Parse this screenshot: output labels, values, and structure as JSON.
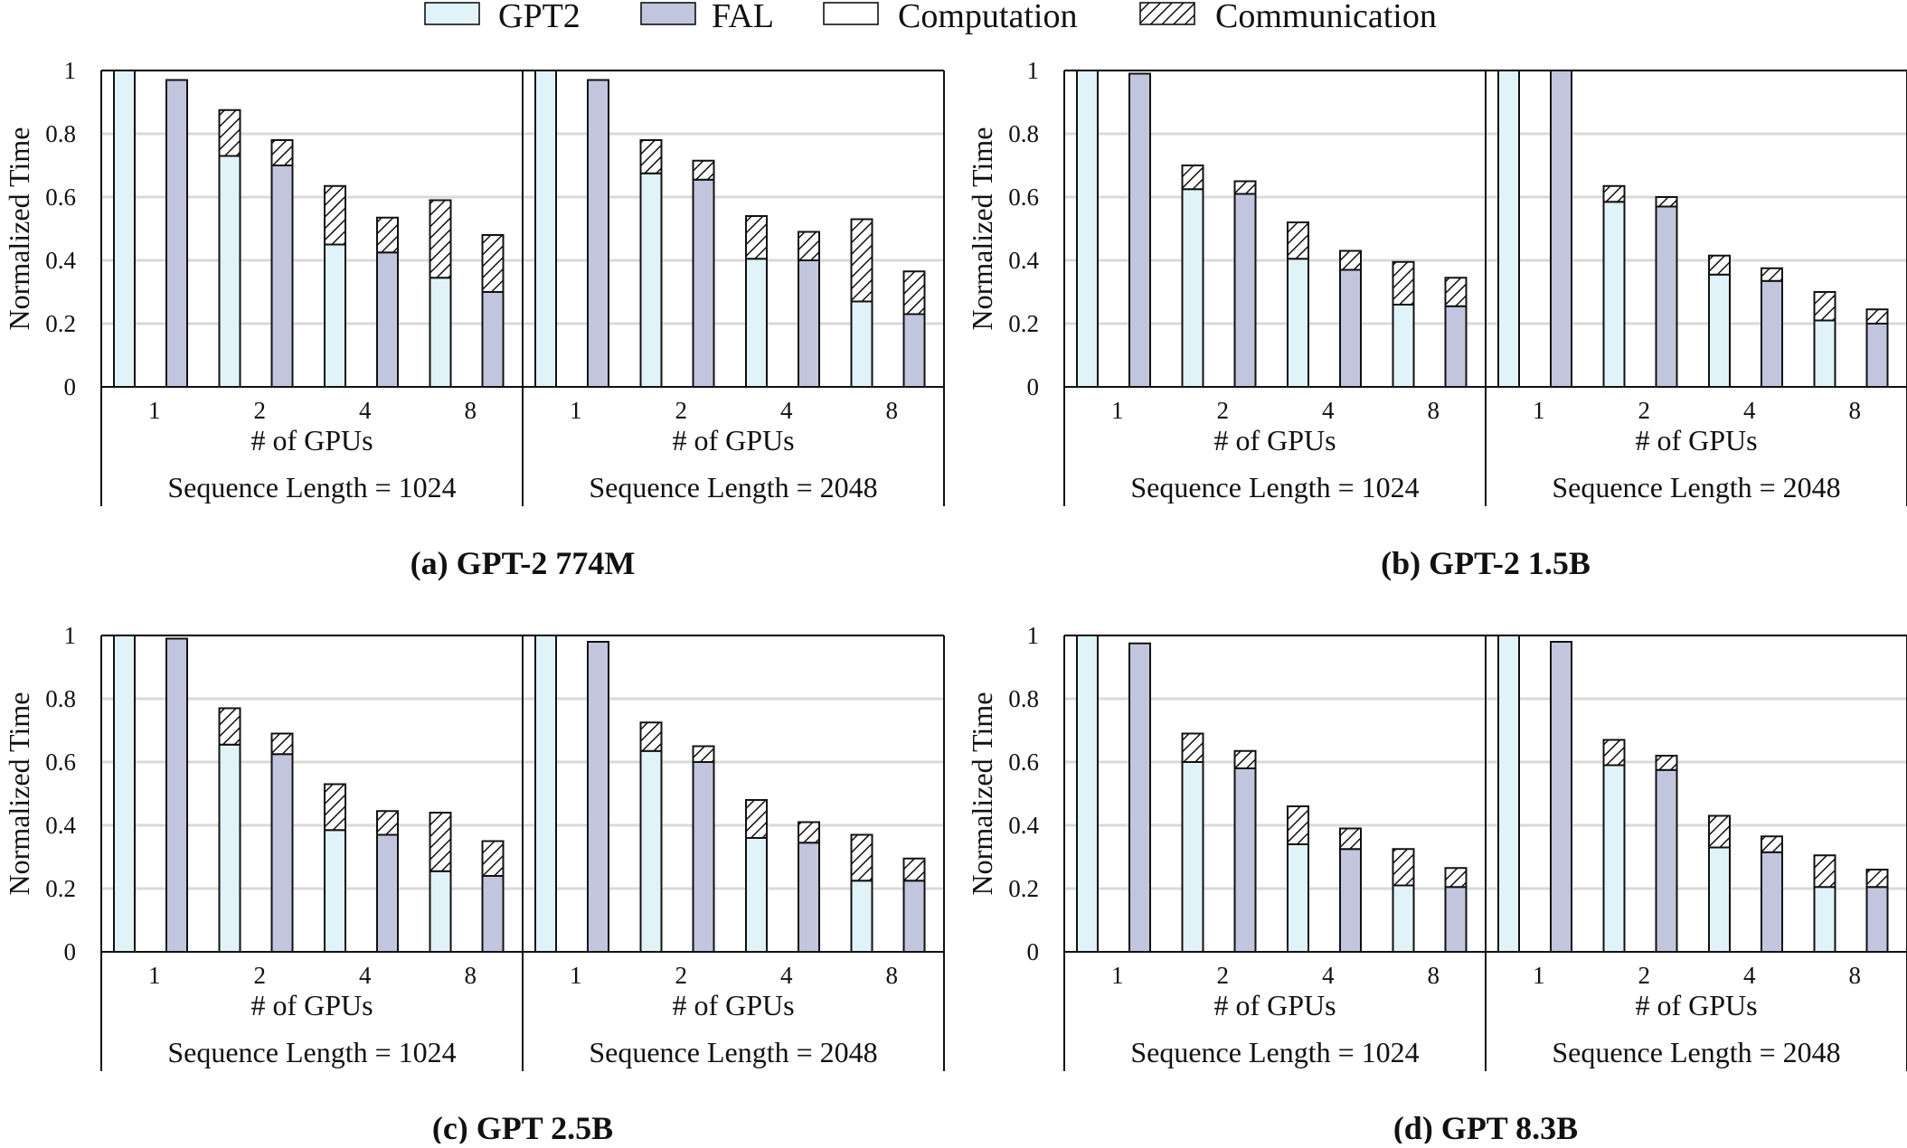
{
  "colors": {
    "gpt2_fill": "#dff3f9",
    "fal_fill": "#c2c5de",
    "stroke": "#111111",
    "gridline": "#d9d9d9"
  },
  "legend": [
    {
      "label": "GPT2",
      "swatch": "gpt2"
    },
    {
      "label": "FAL",
      "swatch": "fal"
    },
    {
      "label": "Computation",
      "swatch": "computation"
    },
    {
      "label": "Communication",
      "swatch": "communication"
    }
  ],
  "chart_data": [
    {
      "type": "bar",
      "caption": "(a) GPT-2 774M",
      "ylabel": "Normalized Time",
      "ylim": [
        0,
        1
      ],
      "yticks": [
        "0",
        "0.2",
        "0.4",
        "0.6",
        "0.8",
        "1"
      ],
      "grid": true,
      "groups": [
        {
          "label": "Sequence Length = 1024",
          "xlabel": "# of GPUs",
          "categories": [
            "1",
            "2",
            "4",
            "8"
          ],
          "series": [
            {
              "name": "GPT2",
              "computation": [
                1.0,
                0.73,
                0.45,
                0.345
              ],
              "communication": [
                0,
                0.145,
                0.185,
                0.245
              ]
            },
            {
              "name": "FAL",
              "computation": [
                0.97,
                0.7,
                0.425,
                0.3
              ],
              "communication": [
                0,
                0.08,
                0.11,
                0.18
              ]
            }
          ]
        },
        {
          "label": "Sequence Length = 2048",
          "xlabel": "# of GPUs",
          "categories": [
            "1",
            "2",
            "4",
            "8"
          ],
          "series": [
            {
              "name": "GPT2",
              "computation": [
                1.0,
                0.675,
                0.405,
                0.27
              ],
              "communication": [
                0,
                0.105,
                0.135,
                0.26
              ]
            },
            {
              "name": "FAL",
              "computation": [
                0.97,
                0.655,
                0.4,
                0.23
              ],
              "communication": [
                0,
                0.06,
                0.09,
                0.135
              ]
            }
          ]
        }
      ]
    },
    {
      "type": "bar",
      "caption": "(b) GPT-2 1.5B",
      "ylabel": "Normalized Time",
      "ylim": [
        0,
        1
      ],
      "yticks": [
        "0",
        "0.2",
        "0.4",
        "0.6",
        "0.8",
        "1"
      ],
      "grid": true,
      "groups": [
        {
          "label": "Sequence Length = 1024",
          "xlabel": "# of GPUs",
          "categories": [
            "1",
            "2",
            "4",
            "8"
          ],
          "series": [
            {
              "name": "GPT2",
              "computation": [
                1.0,
                0.625,
                0.405,
                0.26
              ],
              "communication": [
                0,
                0.075,
                0.115,
                0.135
              ]
            },
            {
              "name": "FAL",
              "computation": [
                0.99,
                0.61,
                0.37,
                0.255
              ],
              "communication": [
                0,
                0.04,
                0.06,
                0.09
              ]
            }
          ]
        },
        {
          "label": "Sequence Length = 2048",
          "xlabel": "# of GPUs",
          "categories": [
            "1",
            "2",
            "4",
            "8"
          ],
          "series": [
            {
              "name": "GPT2",
              "computation": [
                1.0,
                0.585,
                0.355,
                0.21
              ],
              "communication": [
                0,
                0.05,
                0.06,
                0.09
              ]
            },
            {
              "name": "FAL",
              "computation": [
                1.0,
                0.57,
                0.335,
                0.2
              ],
              "communication": [
                0,
                0.03,
                0.04,
                0.045
              ]
            }
          ]
        }
      ]
    },
    {
      "type": "bar",
      "caption": "(c) GPT 2.5B",
      "ylabel": "Normalized Time",
      "ylim": [
        0,
        1
      ],
      "yticks": [
        "0",
        "0.2",
        "0.4",
        "0.6",
        "0.8",
        "1"
      ],
      "grid": true,
      "groups": [
        {
          "label": "Sequence Length = 1024",
          "xlabel": "# of GPUs",
          "categories": [
            "1",
            "2",
            "4",
            "8"
          ],
          "series": [
            {
              "name": "GPT2",
              "computation": [
                1.0,
                0.655,
                0.385,
                0.255
              ],
              "communication": [
                0,
                0.115,
                0.145,
                0.185
              ]
            },
            {
              "name": "FAL",
              "computation": [
                0.99,
                0.625,
                0.37,
                0.24
              ],
              "communication": [
                0,
                0.065,
                0.075,
                0.11
              ]
            }
          ]
        },
        {
          "label": "Sequence Length = 2048",
          "xlabel": "# of GPUs",
          "categories": [
            "1",
            "2",
            "4",
            "8"
          ],
          "series": [
            {
              "name": "GPT2",
              "computation": [
                1.0,
                0.635,
                0.36,
                0.225
              ],
              "communication": [
                0,
                0.09,
                0.12,
                0.145
              ]
            },
            {
              "name": "FAL",
              "computation": [
                0.98,
                0.6,
                0.345,
                0.225
              ],
              "communication": [
                0,
                0.05,
                0.065,
                0.07
              ]
            }
          ]
        }
      ]
    },
    {
      "type": "bar",
      "caption": "(d) GPT 8.3B",
      "ylabel": "Normalized Time",
      "ylim": [
        0,
        1
      ],
      "yticks": [
        "0",
        "0.2",
        "0.4",
        "0.6",
        "0.8",
        "1"
      ],
      "grid": true,
      "groups": [
        {
          "label": "Sequence Length = 1024",
          "xlabel": "# of GPUs",
          "categories": [
            "1",
            "2",
            "4",
            "8"
          ],
          "series": [
            {
              "name": "GPT2",
              "computation": [
                1.0,
                0.6,
                0.34,
                0.21
              ],
              "communication": [
                0,
                0.09,
                0.12,
                0.115
              ]
            },
            {
              "name": "FAL",
              "computation": [
                0.975,
                0.58,
                0.325,
                0.205
              ],
              "communication": [
                0,
                0.055,
                0.065,
                0.06
              ]
            }
          ]
        },
        {
          "label": "Sequence Length = 2048",
          "xlabel": "# of GPUs",
          "categories": [
            "1",
            "2",
            "4",
            "8"
          ],
          "series": [
            {
              "name": "GPT2",
              "computation": [
                1.0,
                0.59,
                0.33,
                0.205
              ],
              "communication": [
                0,
                0.08,
                0.1,
                0.1
              ]
            },
            {
              "name": "FAL",
              "computation": [
                0.98,
                0.575,
                0.315,
                0.205
              ],
              "communication": [
                0,
                0.045,
                0.05,
                0.055
              ]
            }
          ]
        }
      ]
    }
  ]
}
